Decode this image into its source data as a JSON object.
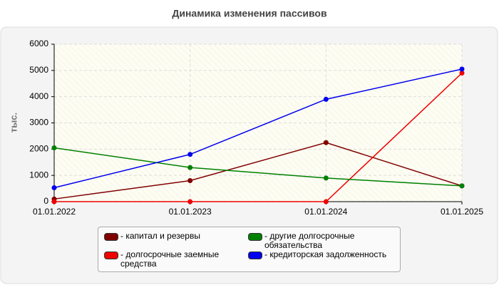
{
  "chart_data": {
    "type": "line",
    "title": "Динамика изменения пассивов",
    "y_label": "тыс.",
    "categories": [
      "01.01.2022",
      "01.01.2023",
      "01.01.2024",
      "01.01.2025"
    ],
    "series": [
      {
        "name": "капитал и резервы",
        "color": "#800000",
        "values": [
          100,
          800,
          2250,
          600
        ]
      },
      {
        "name": "долгосрочные заемные средства",
        "color": "#ee0000",
        "values": [
          0,
          0,
          0,
          4900
        ]
      },
      {
        "name": "другие долгосрочные обязательства",
        "color": "#008000",
        "values": [
          2050,
          1300,
          900,
          600
        ]
      },
      {
        "name": "кредиторская задолженность",
        "color": "#0000ee",
        "values": [
          530,
          1800,
          3900,
          5050
        ]
      }
    ],
    "ylim": [
      0,
      6000
    ],
    "yticks": [
      0,
      1000,
      2000,
      3000,
      4000,
      5000,
      6000
    ],
    "grid": true
  }
}
